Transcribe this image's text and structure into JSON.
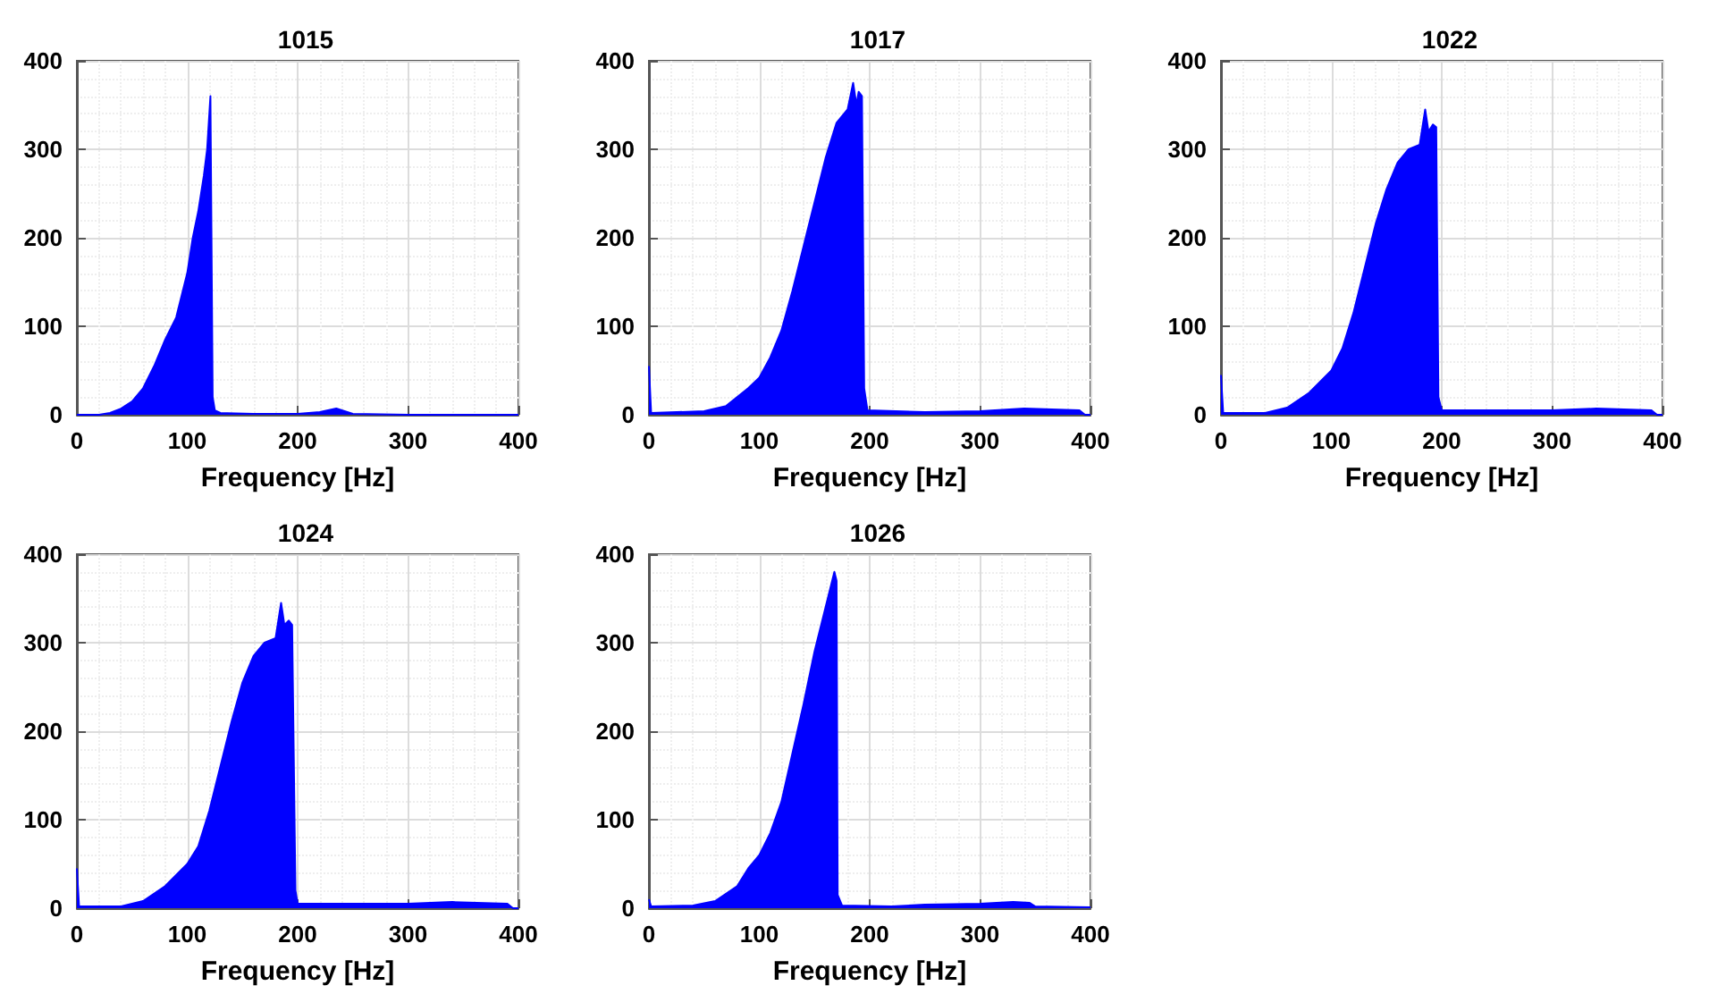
{
  "chart_data": [
    {
      "type": "area",
      "title": "1015",
      "xlabel": "Frequency [Hz]",
      "color": "#0000ff",
      "xlim": [
        0,
        400
      ],
      "xticks": [
        0,
        100,
        200,
        300,
        400
      ],
      "ylim": [
        0,
        400
      ],
      "yticks": [
        0,
        100,
        200,
        300,
        400
      ],
      "grid": true,
      "x": [
        0,
        20,
        30,
        40,
        50,
        60,
        70,
        80,
        90,
        100,
        105,
        110,
        115,
        118,
        121,
        123,
        125,
        130,
        160,
        200,
        220,
        235,
        245,
        250,
        300,
        400
      ],
      "values": [
        0,
        0,
        2,
        7,
        15,
        30,
        55,
        85,
        110,
        160,
        200,
        230,
        270,
        300,
        360,
        20,
        5,
        2,
        1,
        1,
        3,
        7,
        3,
        1,
        0,
        0
      ]
    },
    {
      "type": "area",
      "title": "1017",
      "xlabel": "Frequency [Hz]",
      "color": "#0000ff",
      "xlim": [
        0,
        400
      ],
      "xticks": [
        0,
        100,
        200,
        300,
        400
      ],
      "ylim": [
        0,
        400
      ],
      "yticks": [
        0,
        100,
        200,
        300,
        400
      ],
      "grid": true,
      "x": [
        0,
        2,
        50,
        70,
        90,
        100,
        110,
        120,
        130,
        140,
        150,
        160,
        170,
        180,
        185,
        188,
        190,
        193,
        195,
        198,
        250,
        300,
        340,
        390,
        395,
        400
      ],
      "values": [
        55,
        2,
        4,
        10,
        30,
        42,
        65,
        95,
        140,
        190,
        240,
        290,
        330,
        345,
        375,
        350,
        365,
        360,
        30,
        5,
        3,
        4,
        7,
        5,
        0,
        0
      ]
    },
    {
      "type": "area",
      "title": "1022",
      "xlabel": "Frequency [Hz]",
      "color": "#0000ff",
      "xlim": [
        0,
        400
      ],
      "xticks": [
        0,
        100,
        200,
        300,
        400
      ],
      "ylim": [
        0,
        400
      ],
      "yticks": [
        0,
        100,
        200,
        300,
        400
      ],
      "grid": true,
      "x": [
        0,
        2,
        40,
        60,
        80,
        100,
        110,
        120,
        130,
        140,
        150,
        160,
        170,
        180,
        185,
        188,
        192,
        195,
        197,
        200,
        300,
        340,
        390,
        395,
        400
      ],
      "values": [
        45,
        2,
        2,
        8,
        25,
        50,
        75,
        115,
        165,
        215,
        255,
        285,
        300,
        305,
        345,
        320,
        328,
        325,
        20,
        5,
        5,
        7,
        5,
        0,
        0
      ]
    },
    {
      "type": "area",
      "title": "1024",
      "xlabel": "Frequency [Hz]",
      "color": "#0000ff",
      "xlim": [
        0,
        400
      ],
      "xticks": [
        0,
        100,
        200,
        300,
        400
      ],
      "ylim": [
        0,
        400
      ],
      "yticks": [
        0,
        100,
        200,
        300,
        400
      ],
      "grid": true,
      "x": [
        0,
        2,
        40,
        60,
        80,
        100,
        110,
        120,
        130,
        140,
        150,
        160,
        170,
        180,
        185,
        188,
        192,
        195,
        198,
        200,
        300,
        340,
        390,
        395,
        400
      ],
      "values": [
        45,
        2,
        2,
        8,
        25,
        50,
        70,
        110,
        160,
        210,
        255,
        285,
        300,
        305,
        345,
        320,
        325,
        320,
        20,
        5,
        5,
        7,
        5,
        0,
        0
      ]
    },
    {
      "type": "area",
      "title": "1026",
      "xlabel": "Frequency [Hz]",
      "color": "#0000ff",
      "xlim": [
        0,
        400
      ],
      "xticks": [
        0,
        100,
        200,
        300,
        400
      ],
      "ylim": [
        0,
        400
      ],
      "yticks": [
        0,
        100,
        200,
        300,
        400
      ],
      "grid": true,
      "x": [
        0,
        2,
        40,
        60,
        80,
        90,
        100,
        110,
        120,
        130,
        140,
        150,
        160,
        165,
        168,
        170,
        171,
        175,
        220,
        250,
        300,
        330,
        345,
        350,
        400
      ],
      "values": [
        10,
        2,
        3,
        8,
        25,
        45,
        60,
        85,
        120,
        175,
        230,
        290,
        340,
        365,
        380,
        370,
        15,
        3,
        2,
        4,
        5,
        7,
        6,
        2,
        1
      ]
    }
  ]
}
